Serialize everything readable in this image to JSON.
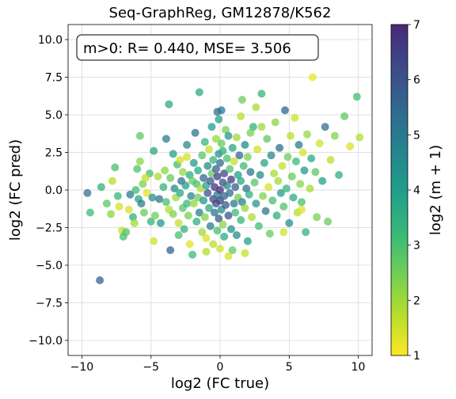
{
  "chart_data": {
    "type": "scatter",
    "title": "Seq-GraphReg, GM12878/K562",
    "xlabel": "log2 (FC true)",
    "ylabel": "log2 (FC pred)",
    "annotation": "m>0: R= 0.440, MSE= 3.506",
    "xlim": [
      -11,
      11
    ],
    "ylim": [
      -11,
      11
    ],
    "xticks": [
      -10,
      -5,
      0,
      5,
      10
    ],
    "xtick_labels": [
      "−10",
      "−5",
      "0",
      "5",
      "10"
    ],
    "yticks": [
      -10,
      -7.5,
      -5,
      -2.5,
      0,
      2.5,
      5,
      7.5,
      10
    ],
    "ytick_labels": [
      "−10.0",
      "−7.5",
      "−5.0",
      "−2.5",
      "0.0",
      "2.5",
      "5.0",
      "7.5",
      "10.0"
    ],
    "grid": true,
    "colorbar": {
      "label": "log2 (m + 1)",
      "min": 1,
      "max": 7,
      "ticks": [
        1,
        2,
        3,
        4,
        5,
        6,
        7
      ],
      "colormap": "viridis_r"
    },
    "points": [
      [
        -9.6,
        -0.2,
        5.2
      ],
      [
        -9.4,
        -1.5,
        3.2
      ],
      [
        -8.7,
        -6.0,
        5.6
      ],
      [
        -8.6,
        0.2,
        3.4
      ],
      [
        -8.2,
        -0.9,
        2.8
      ],
      [
        -7.8,
        0.6,
        1.8
      ],
      [
        -7.6,
        1.5,
        3.0
      ],
      [
        -7.4,
        -0.4,
        3.3
      ],
      [
        -7.3,
        -1.1,
        1.5
      ],
      [
        -7.1,
        -2.7,
        1.6
      ],
      [
        -7.0,
        -3.1,
        3.0
      ],
      [
        -6.8,
        -2.8,
        2.9
      ],
      [
        -6.6,
        -1.3,
        1.4
      ],
      [
        -6.5,
        -0.3,
        5.0
      ],
      [
        -6.3,
        -1.8,
        3.5
      ],
      [
        -6.1,
        0.0,
        3.1
      ],
      [
        -6.0,
        1.4,
        2.9
      ],
      [
        -5.9,
        -0.6,
        3.8
      ],
      [
        -5.8,
        1.9,
        2.2
      ],
      [
        -5.8,
        3.6,
        2.7
      ],
      [
        -5.7,
        -0.9,
        4.8
      ],
      [
        -5.6,
        0.4,
        2.4
      ],
      [
        -5.5,
        -1.5,
        2.6
      ],
      [
        -5.3,
        -0.2,
        1.3
      ],
      [
        -5.1,
        1.1,
        3.0
      ],
      [
        -5.0,
        -2.1,
        3.3
      ],
      [
        -4.9,
        -0.5,
        4.4
      ],
      [
        -4.8,
        2.6,
        3.8
      ],
      [
        -4.7,
        -1.7,
        2.5
      ],
      [
        -4.5,
        0.9,
        1.9
      ],
      [
        -4.4,
        -0.6,
        5.1
      ],
      [
        -4.3,
        -2.2,
        4.2
      ],
      [
        -4.1,
        0.2,
        3.4
      ],
      [
        -4.0,
        1.3,
        2.2
      ],
      [
        -3.9,
        3.4,
        5.0
      ],
      [
        -3.9,
        -0.8,
        3.0
      ],
      [
        -3.7,
        -1.3,
        1.8
      ],
      [
        -3.7,
        5.7,
        3.6
      ],
      [
        -3.6,
        0.8,
        2.6
      ],
      [
        -3.6,
        -4.0,
        5.6
      ],
      [
        -3.4,
        2.4,
        3.9
      ],
      [
        -3.4,
        -1.6,
        2.3
      ],
      [
        -3.3,
        0.1,
        4.4
      ],
      [
        -3.2,
        -0.5,
        2.0
      ],
      [
        -3.1,
        1.7,
        3.1
      ],
      [
        -3.0,
        -2.2,
        1.6
      ],
      [
        -2.9,
        2.0,
        1.4
      ],
      [
        -2.9,
        -0.2,
        3.7
      ],
      [
        -2.8,
        0.6,
        5.3
      ],
      [
        -2.7,
        -1.2,
        2.8
      ],
      [
        -2.7,
        1.2,
        2.1
      ],
      [
        -2.6,
        -2.6,
        3.4
      ],
      [
        -2.5,
        0.3,
        4.0
      ],
      [
        -2.4,
        -0.9,
        3.2
      ],
      [
        -2.4,
        2.2,
        1.5
      ],
      [
        -2.3,
        -1.7,
        2.4
      ],
      [
        -2.2,
        1.0,
        3.6
      ],
      [
        -2.2,
        -3.6,
        1.3
      ],
      [
        -2.1,
        -0.4,
        4.6
      ],
      [
        -2.0,
        0.6,
        2.6
      ],
      [
        -2.0,
        -4.3,
        3.2
      ],
      [
        -1.9,
        1.8,
        4.1
      ],
      [
        -1.9,
        -0.9,
        2.1
      ],
      [
        -1.8,
        3.8,
        5.1
      ],
      [
        -1.7,
        -2.1,
        3.5
      ],
      [
        -1.7,
        0.4,
        3.0
      ],
      [
        -1.6,
        -0.5,
        2.5
      ],
      [
        -1.6,
        1.3,
        3.7
      ],
      [
        -1.5,
        -1.5,
        4.9
      ],
      [
        -1.5,
        6.5,
        3.6
      ],
      [
        -1.4,
        0.1,
        1.9
      ],
      [
        -1.3,
        -2.8,
        2.0
      ],
      [
        -1.3,
        2.3,
        2.8
      ],
      [
        -1.2,
        -0.7,
        4.2
      ],
      [
        -1.2,
        0.8,
        5.5
      ],
      [
        -1.1,
        -1.8,
        2.3
      ],
      [
        -1.1,
        3.2,
        3.3
      ],
      [
        -1.0,
        0.3,
        3.9
      ],
      [
        -1.0,
        -3.2,
        1.4
      ],
      [
        -0.9,
        1.6,
        4.5
      ],
      [
        -0.9,
        -0.2,
        6.1
      ],
      [
        -0.8,
        2.7,
        1.6
      ],
      [
        -0.8,
        -1.2,
        3.7
      ],
      [
        -0.7,
        0.6,
        5.9
      ],
      [
        -0.7,
        -2.4,
        4.8
      ],
      [
        -0.6,
        4.2,
        4.0
      ],
      [
        -0.6,
        1.1,
        2.7
      ],
      [
        -0.5,
        -0.6,
        6.4
      ],
      [
        -0.5,
        2.0,
        3.3
      ],
      [
        -0.5,
        -3.6,
        1.7
      ],
      [
        -0.4,
        0.2,
        6.8
      ],
      [
        -0.4,
        -1.5,
        5.2
      ],
      [
        -0.3,
        3.4,
        2.1
      ],
      [
        -0.3,
        1.4,
        5.7
      ],
      [
        -0.3,
        -0.9,
        6.2
      ],
      [
        -0.2,
        -2.7,
        3.0
      ],
      [
        -0.2,
        0.9,
        6.6
      ],
      [
        -0.2,
        -0.3,
        4.9
      ],
      [
        -0.1,
        2.4,
        4.3
      ],
      [
        -0.1,
        -1.9,
        5.8
      ],
      [
        -0.1,
        4.7,
        3.9
      ],
      [
        0.0,
        0.0,
        6.9
      ],
      [
        0.0,
        -3.9,
        1.5
      ],
      [
        0.0,
        1.8,
        5.4
      ],
      [
        0.0,
        -0.7,
        6.5
      ],
      [
        0.1,
        3.1,
        2.6
      ],
      [
        0.1,
        -1.3,
        4.4
      ],
      [
        0.1,
        5.3,
        5.0
      ],
      [
        0.2,
        0.5,
        6.1
      ],
      [
        0.2,
        -2.3,
        2.2
      ],
      [
        0.2,
        2.6,
        3.5
      ],
      [
        0.3,
        -0.4,
        5.6
      ],
      [
        0.3,
        1.1,
        6.3
      ],
      [
        0.3,
        -3.1,
        3.6
      ],
      [
        0.4,
        4.0,
        2.4
      ],
      [
        0.4,
        -1.0,
        5.9
      ],
      [
        0.5,
        0.3,
        4.7
      ],
      [
        0.5,
        2.1,
        3.0
      ],
      [
        0.6,
        -1.7,
        6.0
      ],
      [
        0.6,
        3.6,
        4.1
      ],
      [
        0.7,
        -0.2,
        5.3
      ],
      [
        0.7,
        1.4,
        2.9
      ],
      [
        0.8,
        -2.6,
        4.3
      ],
      [
        0.8,
        0.7,
        6.7
      ],
      [
        0.9,
        -4.0,
        2.7
      ],
      [
        0.9,
        2.8,
        3.8
      ],
      [
        1.0,
        -0.9,
        5.0
      ],
      [
        1.0,
        1.9,
        1.6
      ],
      [
        1.1,
        -1.5,
        3.2
      ],
      [
        1.1,
        0.2,
        5.8
      ],
      [
        1.2,
        3.5,
        2.0
      ],
      [
        1.2,
        -3.0,
        4.5
      ],
      [
        1.3,
        1.0,
        4.0
      ],
      [
        1.3,
        -0.5,
        2.5
      ],
      [
        1.4,
        2.3,
        5.5
      ],
      [
        1.5,
        -2.0,
        3.3
      ],
      [
        1.5,
        0.6,
        3.7
      ],
      [
        1.6,
        6.0,
        2.5
      ],
      [
        1.6,
        -0.8,
        4.8
      ],
      [
        1.7,
        1.6,
        3.1
      ],
      [
        1.8,
        -1.2,
        2.1
      ],
      [
        1.8,
        3.0,
        4.6
      ],
      [
        1.9,
        0.1,
        5.2
      ],
      [
        2.0,
        -3.4,
        3.9
      ],
      [
        2.0,
        2.2,
        2.4
      ],
      [
        2.1,
        -0.3,
        3.5
      ],
      [
        2.2,
        1.2,
        5.0
      ],
      [
        2.3,
        -1.8,
        1.8
      ],
      [
        2.4,
        4.2,
        3.4
      ],
      [
        2.5,
        0.5,
        2.8
      ],
      [
        2.6,
        -0.9,
        4.2
      ],
      [
        2.7,
        2.7,
        1.5
      ],
      [
        2.8,
        -2.4,
        3.1
      ],
      [
        2.9,
        1.0,
        4.5
      ],
      [
        3.0,
        6.4,
        3.3
      ],
      [
        3.1,
        -0.4,
        2.3
      ],
      [
        3.2,
        1.8,
        3.8
      ],
      [
        3.3,
        -1.4,
        5.1
      ],
      [
        3.4,
        3.4,
        2.7
      ],
      [
        3.5,
        0.2,
        1.4
      ],
      [
        3.6,
        -2.9,
        2.6
      ],
      [
        3.7,
        2.3,
        4.6
      ],
      [
        3.8,
        -0.7,
        3.0
      ],
      [
        3.9,
        1.1,
        1.9
      ],
      [
        4.0,
        4.5,
        2.2
      ],
      [
        4.1,
        -1.7,
        3.5
      ],
      [
        4.2,
        0.6,
        2.0
      ],
      [
        4.3,
        2.8,
        5.3
      ],
      [
        4.4,
        -0.2,
        4.0
      ],
      [
        4.5,
        1.6,
        1.6
      ],
      [
        4.6,
        -1.1,
        2.9
      ],
      [
        4.7,
        5.3,
        5.6
      ],
      [
        4.8,
        0.1,
        3.3
      ],
      [
        4.9,
        2.2,
        2.5
      ],
      [
        5.0,
        -2.2,
        4.4
      ],
      [
        5.1,
        3.6,
        1.7
      ],
      [
        5.2,
        0.9,
        2.6
      ],
      [
        5.3,
        -0.5,
        3.6
      ],
      [
        5.4,
        4.8,
        1.5
      ],
      [
        5.5,
        1.9,
        3.2
      ],
      [
        5.6,
        -1.5,
        1.8
      ],
      [
        5.7,
        3.0,
        5.0
      ],
      [
        5.8,
        0.4,
        2.2
      ],
      [
        5.9,
        -0.8,
        3.0
      ],
      [
        6.0,
        2.5,
        1.4
      ],
      [
        6.1,
        1.3,
        4.2
      ],
      [
        6.2,
        -2.8,
        3.4
      ],
      [
        6.3,
        3.7,
        2.1
      ],
      [
        6.5,
        0.1,
        1.9
      ],
      [
        6.6,
        2.1,
        3.6
      ],
      [
        6.7,
        7.5,
        1.2
      ],
      [
        6.9,
        1.2,
        2.8
      ],
      [
        7.0,
        -1.8,
        2.4
      ],
      [
        7.2,
        3.1,
        1.5
      ],
      [
        7.4,
        0.6,
        3.9
      ],
      [
        7.6,
        4.2,
        5.2
      ],
      [
        7.8,
        -2.1,
        2.6
      ],
      [
        8.0,
        2.0,
        1.7
      ],
      [
        8.3,
        3.6,
        2.3
      ],
      [
        8.6,
        1.0,
        3.5
      ],
      [
        9.0,
        4.9,
        2.7
      ],
      [
        9.4,
        2.9,
        1.4
      ],
      [
        9.9,
        6.2,
        3.1
      ],
      [
        10.1,
        3.5,
        1.8
      ],
      [
        3.0,
        4.2,
        2.0
      ],
      [
        2.2,
        3.8,
        2.4
      ],
      [
        1.5,
        4.9,
        1.7
      ],
      [
        -0.2,
        5.2,
        5.2
      ],
      [
        -2.4,
        3.0,
        4.6
      ],
      [
        -3.0,
        -3.0,
        3.0
      ],
      [
        -4.8,
        -3.4,
        1.5
      ],
      [
        -5.4,
        0.8,
        1.6
      ],
      [
        -6.2,
        -2.2,
        2.0
      ],
      [
        -7.9,
        -1.6,
        2.2
      ],
      [
        4.6,
        -2.8,
        1.5
      ],
      [
        5.9,
        -1.3,
        1.3
      ],
      [
        1.8,
        -4.2,
        1.6
      ],
      [
        0.6,
        -4.4,
        1.4
      ],
      [
        -1.0,
        -4.1,
        1.8
      ],
      [
        2.6,
        5.5,
        1.9
      ]
    ]
  }
}
